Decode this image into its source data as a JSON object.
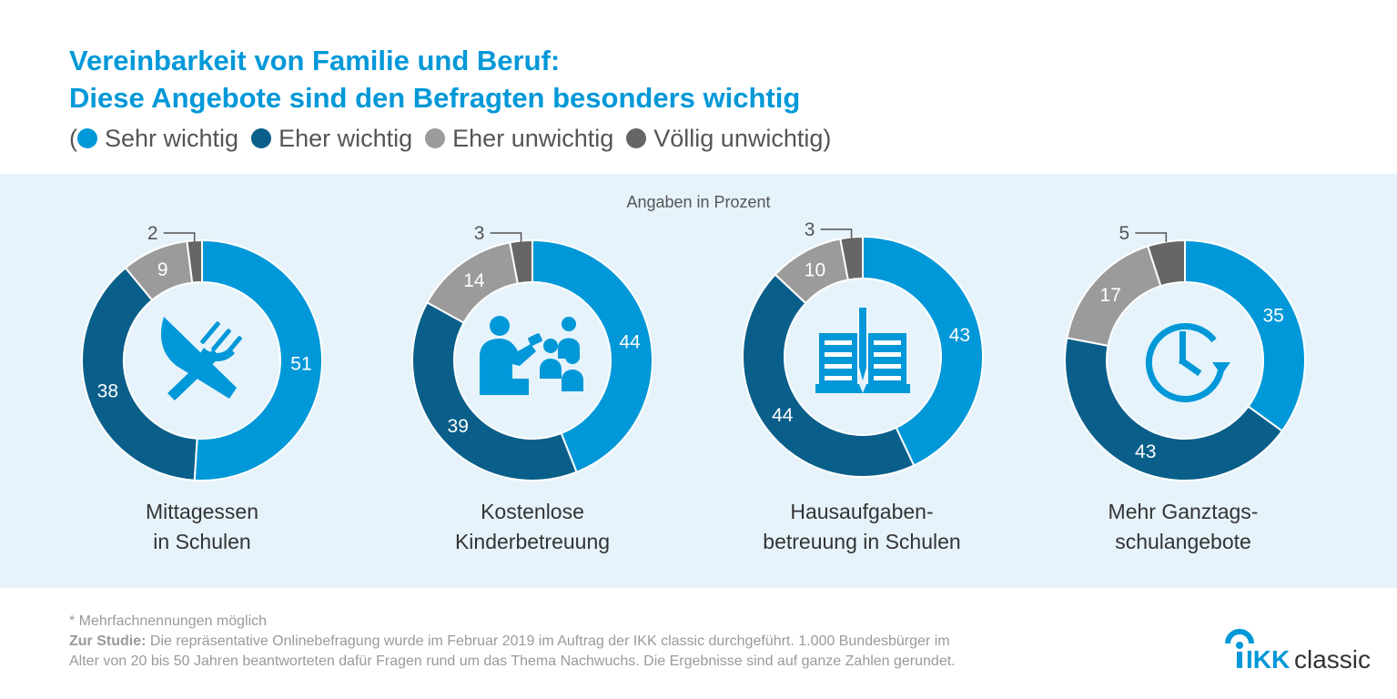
{
  "title_line1": "Vereinbarkeit von Familie und Beruf:",
  "title_line2": "Diese Angebote sind den Befragten besonders wichtig",
  "legend": {
    "open": "(",
    "close": ")",
    "items": [
      {
        "label": "Sehr wichtig",
        "color": "#0098d8"
      },
      {
        "label": "Eher wichtig",
        "color": "#0a5f8a"
      },
      {
        "label": "Eher unwichtig",
        "color": "#9b9b9b"
      },
      {
        "label": "Völlig unwichtig",
        "color": "#666666"
      }
    ]
  },
  "unit_label": "Angaben in Prozent",
  "chart_data": {
    "type": "donut",
    "series_names": [
      "Sehr wichtig",
      "Eher wichtig",
      "Eher unwichtig",
      "Völlig unwichtig"
    ],
    "colors": [
      "#0098d8",
      "#0a5f8a",
      "#9b9b9b",
      "#666666"
    ],
    "charts": [
      {
        "label_line1": "Mittagessen",
        "label_line2": "in Schulen",
        "icon": "cutlery-icon",
        "values": [
          51,
          38,
          9,
          2
        ]
      },
      {
        "label_line1": "Kostenlose",
        "label_line2": "Kinderbetreuung",
        "icon": "childcare-icon",
        "values": [
          44,
          39,
          14,
          3
        ]
      },
      {
        "label_line1": "Hausaufgaben-",
        "label_line2": "betreuung in Schulen",
        "icon": "homework-book-icon",
        "values": [
          43,
          44,
          10,
          3
        ]
      },
      {
        "label_line1": "Mehr Ganztags-",
        "label_line2": "schulangebote",
        "icon": "clock-icon",
        "values": [
          35,
          43,
          17,
          5
        ]
      }
    ]
  },
  "footnote": {
    "note": "* Mehrfachnennungen möglich",
    "study_label": "Zur Studie:",
    "study_text_1": " Die repräsentative Onlinebefragung wurde im Februar 2019 im Auftrag der IKK classic durchgeführt. 1.000 Bundesbürger im",
    "study_text_2": "Alter von 20 bis 50 Jahren beantworteten dafür Fragen rund um das Thema Nachwuchs. Die Ergebnisse sind auf ganze Zahlen gerundet."
  },
  "logo": {
    "brand_bold": "IKK",
    "brand_light": "classic",
    "color": "#0098d8"
  }
}
